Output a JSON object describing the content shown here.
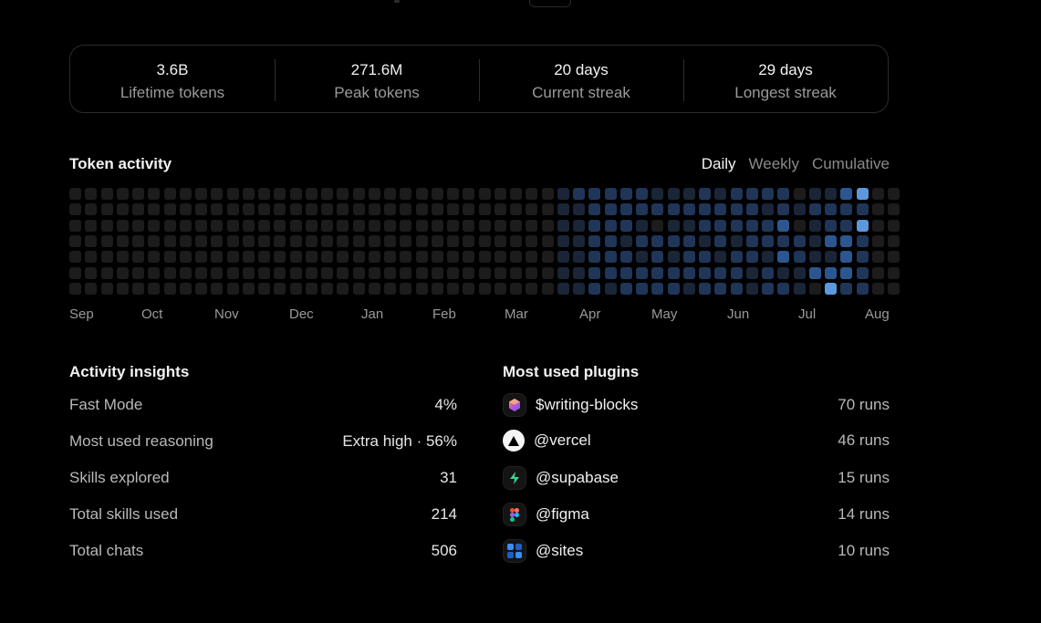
{
  "stats": [
    {
      "value": "3.6B",
      "label": "Lifetime tokens"
    },
    {
      "value": "271.6M",
      "label": "Peak tokens"
    },
    {
      "value": "20 days",
      "label": "Current streak"
    },
    {
      "value": "29 days",
      "label": "Longest streak"
    }
  ],
  "activity": {
    "title": "Token activity",
    "tabs": [
      {
        "label": "Daily",
        "active": true
      },
      {
        "label": "Weekly",
        "active": false
      },
      {
        "label": "Cumulative",
        "active": false
      }
    ],
    "months": [
      "Sep",
      "Oct",
      "Nov",
      "Dec",
      "Jan",
      "Feb",
      "Mar",
      "Apr",
      "May",
      "Jun",
      "Jul",
      "Aug"
    ],
    "weeks": 53,
    "days": 7,
    "levels": {
      "31": [
        1,
        1,
        1,
        1,
        1,
        1,
        1
      ],
      "32": [
        2,
        1,
        1,
        1,
        1,
        1,
        1
      ],
      "33": [
        2,
        2,
        2,
        2,
        2,
        2,
        2
      ],
      "34": [
        2,
        2,
        2,
        2,
        2,
        2,
        1
      ],
      "35": [
        2,
        2,
        2,
        1,
        2,
        2,
        2
      ],
      "36": [
        2,
        2,
        1,
        2,
        1,
        2,
        2
      ],
      "37": [
        1,
        2,
        0,
        2,
        2,
        2,
        2
      ],
      "38": [
        1,
        2,
        1,
        2,
        1,
        2,
        2
      ],
      "39": [
        1,
        2,
        1,
        2,
        2,
        2,
        1
      ],
      "40": [
        2,
        2,
        2,
        1,
        2,
        2,
        2
      ],
      "41": [
        1,
        2,
        2,
        2,
        1,
        2,
        2
      ],
      "42": [
        2,
        2,
        2,
        1,
        2,
        2,
        2
      ],
      "43": [
        2,
        2,
        2,
        2,
        2,
        1,
        1
      ],
      "44": [
        2,
        1,
        2,
        2,
        1,
        2,
        2
      ],
      "45": [
        2,
        2,
        3,
        2,
        3,
        1,
        2
      ],
      "46": [
        0,
        1,
        0,
        2,
        2,
        1,
        1
      ],
      "47": [
        1,
        2,
        1,
        1,
        1,
        3,
        0
      ],
      "48": [
        1,
        2,
        2,
        3,
        1,
        3,
        4
      ],
      "49": [
        3,
        2,
        2,
        3,
        3,
        3,
        2
      ],
      "50": [
        4,
        2,
        4,
        2,
        2,
        2,
        2
      ]
    },
    "palette": [
      "#1c1c1c",
      "#1a2638",
      "#1f3658",
      "#2c5690",
      "#5c98dd"
    ]
  },
  "insights": {
    "title": "Activity insights",
    "items": [
      {
        "label": "Fast Mode",
        "value": "4%"
      },
      {
        "label": "Most used reasoning",
        "value": "Extra high · 56%"
      },
      {
        "label": "Skills explored",
        "value": "31"
      },
      {
        "label": "Total skills used",
        "value": "214"
      },
      {
        "label": "Total chats",
        "value": "506"
      }
    ]
  },
  "plugins": {
    "title": "Most used plugins",
    "items": [
      {
        "name": "$writing-blocks",
        "runs": "70 runs",
        "icon": "writing-blocks-icon"
      },
      {
        "name": "@vercel",
        "runs": "46 runs",
        "icon": "vercel-icon"
      },
      {
        "name": "@supabase",
        "runs": "15 runs",
        "icon": "supabase-icon"
      },
      {
        "name": "@figma",
        "runs": "14 runs",
        "icon": "figma-icon"
      },
      {
        "name": "@sites",
        "runs": "10 runs",
        "icon": "sites-icon"
      }
    ]
  }
}
